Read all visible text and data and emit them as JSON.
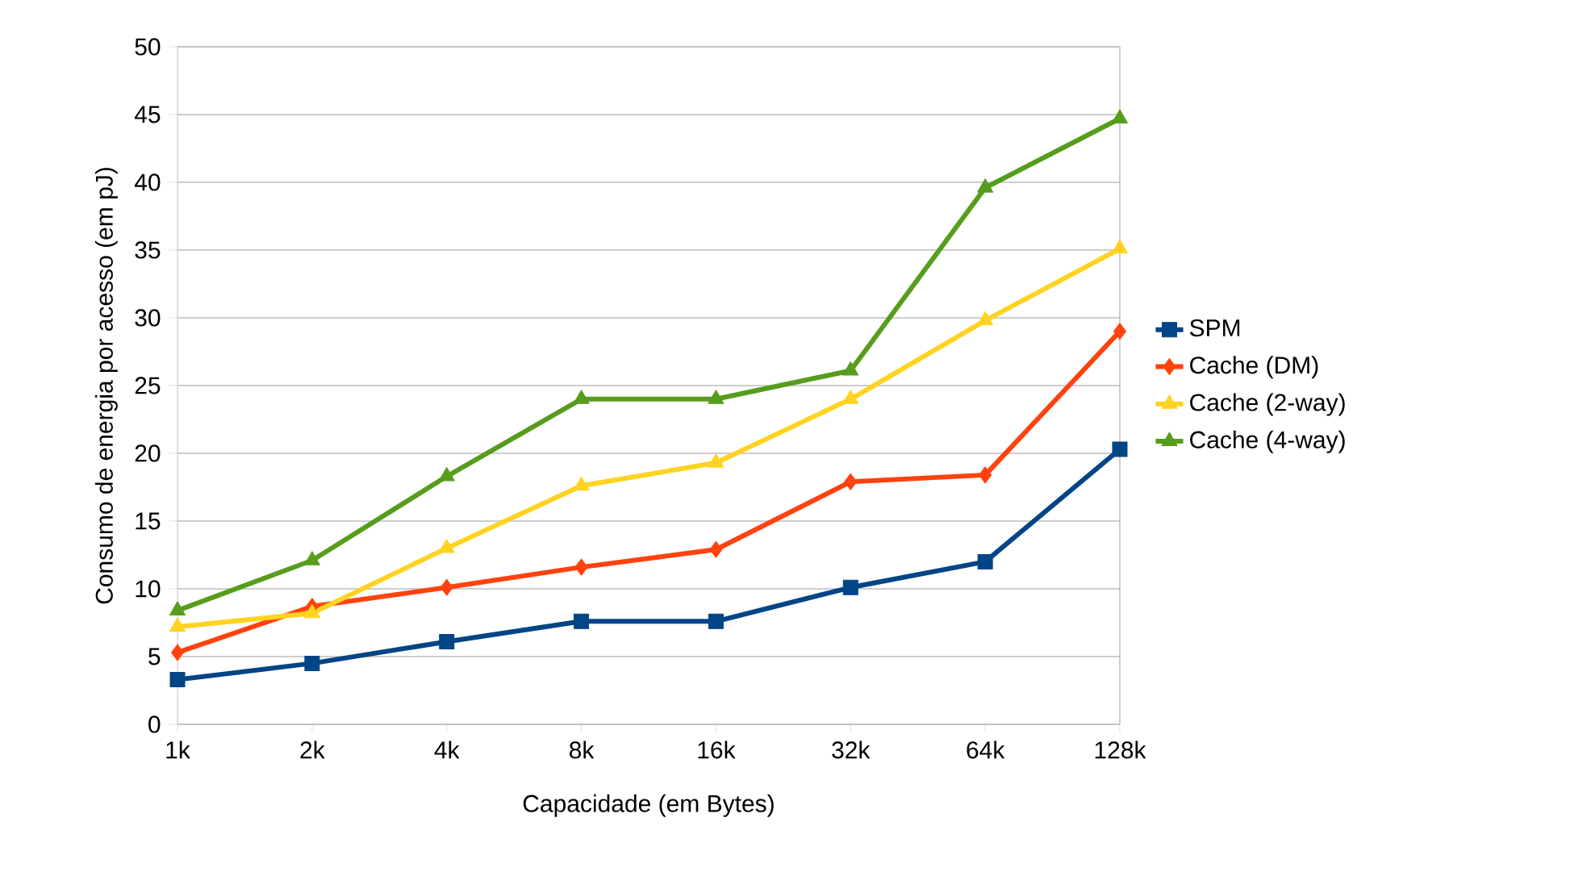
{
  "chart_data": {
    "type": "line",
    "xlabel": "Capacidade (em Bytes)",
    "ylabel": "Consumo de energia por acesso (em pJ)",
    "categories": [
      "1k",
      "2k",
      "4k",
      "8k",
      "16k",
      "32k",
      "64k",
      "128k"
    ],
    "ylim": [
      0,
      50
    ],
    "yticks": [
      0,
      5,
      10,
      15,
      20,
      25,
      30,
      35,
      40,
      45,
      50
    ],
    "grid": "y",
    "legend": "right",
    "line_style": "solid",
    "series": [
      {
        "name": "SPM",
        "color": "#004586",
        "marker": "square",
        "values": [
          3.3,
          4.5,
          6.1,
          7.6,
          7.6,
          10.1,
          12.0,
          20.3
        ]
      },
      {
        "name": "Cache (DM)",
        "color": "#ff420e",
        "marker": "diamond",
        "values": [
          5.3,
          8.7,
          10.1,
          11.6,
          12.9,
          17.9,
          18.4,
          29.0
        ]
      },
      {
        "name": "Cache (2-way)",
        "color": "#ffd320",
        "marker": "triangle-down",
        "values": [
          7.2,
          8.2,
          13.0,
          17.6,
          19.3,
          24.0,
          29.8,
          35.1
        ]
      },
      {
        "name": "Cache (4-way)",
        "color": "#579d1c",
        "marker": "triangle",
        "values": [
          8.4,
          12.1,
          18.3,
          24.0,
          24.0,
          26.1,
          39.6,
          44.7
        ]
      }
    ]
  }
}
